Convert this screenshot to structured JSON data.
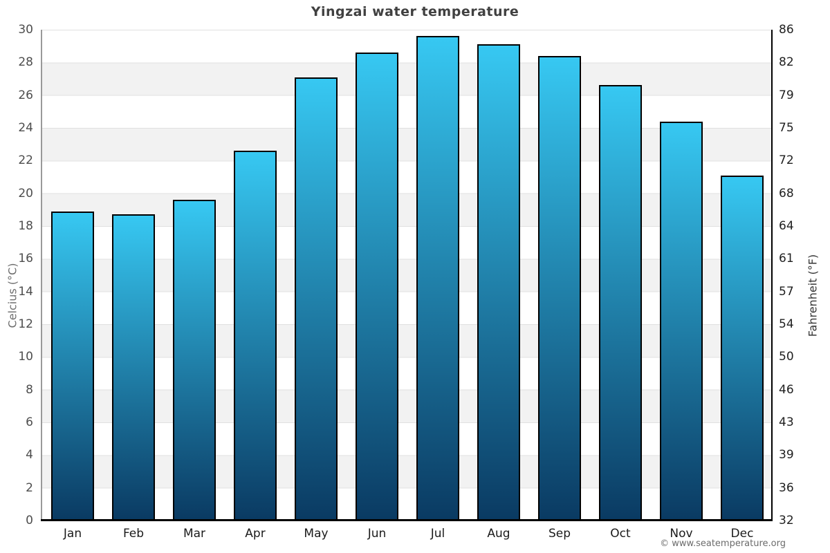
{
  "title": "Yingzai water temperature",
  "chart_data": {
    "type": "bar",
    "title": "Yingzai water temperature",
    "categories": [
      "Jan",
      "Feb",
      "Mar",
      "Apr",
      "May",
      "Jun",
      "Jul",
      "Aug",
      "Sep",
      "Oct",
      "Nov",
      "Dec"
    ],
    "values": [
      18.9,
      18.7,
      19.6,
      22.6,
      27.1,
      28.6,
      29.6,
      29.1,
      28.4,
      26.6,
      24.4,
      21.1
    ],
    "unit": "°C",
    "ylabel_left": "Celcius (°C)",
    "ylabel_right": "Fahrenheit (°F)",
    "ylim_celsius": [
      0,
      30
    ],
    "celsius_ticks": [
      0,
      2,
      4,
      6,
      8,
      10,
      12,
      14,
      16,
      18,
      20,
      22,
      24,
      26,
      28,
      30
    ],
    "fahrenheit_ticks": [
      32,
      36,
      39,
      43,
      46,
      50,
      54,
      57,
      61,
      64,
      68,
      72,
      75,
      79,
      82,
      86
    ],
    "grid": "alternating horizontal bands every 2°C, light gridlines",
    "legend": "none"
  },
  "footer": {
    "copyright": "© www.seatemperature.org"
  },
  "colors": {
    "bar_gradient_top": "#37c8f2",
    "bar_gradient_bottom": "#0a3a62",
    "bar_border": "#000000",
    "band_gray": "#f2f2f2",
    "band_white": "#ffffff",
    "gridline": "#e0e0e0",
    "title_text": "#404040",
    "tick_text_left": "#4d4d4d",
    "tick_text_right": "#1f1f1f",
    "month_text": "#1a1a1a",
    "copyright_text": "#6b6b6b"
  }
}
